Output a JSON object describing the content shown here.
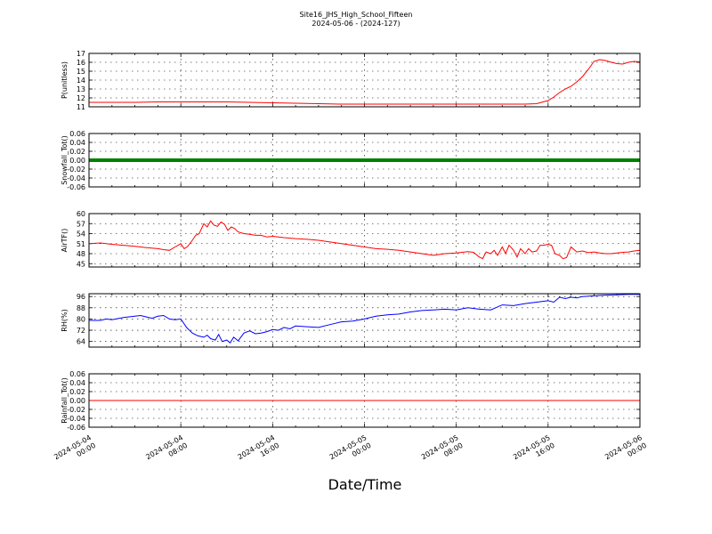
{
  "title": {
    "line1": "Site16_JHS_High_School_Fifteen",
    "line2": "2024-05-06 - (2024-127)"
  },
  "xlabel": "Date/Time",
  "x_ticks": [
    {
      "line1": "2024-05-04",
      "line2": "00:00"
    },
    {
      "line1": "2024-05-04",
      "line2": "08:00"
    },
    {
      "line1": "2024-05-04",
      "line2": "16:00"
    },
    {
      "line1": "2024-05-05",
      "line2": "00:00"
    },
    {
      "line1": "2024-05-05",
      "line2": "08:00"
    },
    {
      "line1": "2024-05-05",
      "line2": "16:00"
    },
    {
      "line1": "2024-05-06",
      "line2": "00:00"
    }
  ],
  "chart_data": [
    {
      "type": "line",
      "ylabel": "P(unitless)",
      "ylim": [
        11,
        17
      ],
      "yticks": [
        11,
        12,
        13,
        14,
        15,
        16,
        17
      ],
      "xlim_hours": [
        0,
        48
      ],
      "grid": true,
      "color": "#ff0000",
      "x": [
        0,
        2,
        4,
        6,
        8,
        10,
        12,
        14,
        16,
        18,
        20,
        22,
        24,
        26,
        28,
        30,
        32,
        34,
        36,
        38,
        39,
        40,
        40.5,
        41,
        41.5,
        42,
        42.5,
        43,
        43.5,
        44,
        44.5,
        45,
        45.5,
        46,
        46.5,
        47,
        47.5,
        48
      ],
      "values": [
        11.5,
        11.5,
        11.5,
        11.55,
        11.55,
        11.55,
        11.55,
        11.5,
        11.45,
        11.4,
        11.35,
        11.3,
        11.3,
        11.3,
        11.3,
        11.3,
        11.3,
        11.3,
        11.3,
        11.3,
        11.35,
        11.7,
        12.1,
        12.6,
        13.0,
        13.3,
        13.8,
        14.4,
        15.2,
        16.1,
        16.3,
        16.2,
        16.0,
        15.85,
        15.8,
        16.0,
        16.1,
        16.05
      ]
    },
    {
      "type": "line",
      "ylabel": "Snowfall_Tot()",
      "ylim": [
        -0.06,
        0.06
      ],
      "yticks": [
        "0.06",
        "0.04",
        "0.02",
        "0.00",
        "-0.02",
        "-0.04",
        "-0.06"
      ],
      "xlim_hours": [
        0,
        48
      ],
      "grid": true,
      "color": "#008000",
      "x": [
        0,
        48
      ],
      "values": [
        0.0,
        0.0
      ]
    },
    {
      "type": "line",
      "ylabel": "AirTF()",
      "ylim": [
        44,
        60
      ],
      "yticks": [
        45,
        48,
        51,
        54,
        57,
        60
      ],
      "xlim_hours": [
        0,
        48
      ],
      "grid": true,
      "color": "#ff0000",
      "x": [
        0,
        1,
        2,
        3,
        4,
        5,
        6,
        6.5,
        7,
        7.5,
        8,
        8.3,
        8.6,
        9,
        9.3,
        9.6,
        10,
        10.3,
        10.6,
        10.9,
        11.2,
        11.5,
        11.8,
        12.1,
        12.4,
        12.7,
        13,
        13.5,
        14,
        14.5,
        15,
        15.5,
        16,
        16.5,
        17,
        18,
        19,
        20,
        21,
        22,
        23,
        24,
        25,
        26,
        27,
        28,
        29,
        30,
        31,
        32,
        32.5,
        33,
        33.5,
        34,
        34.3,
        34.6,
        35,
        35.3,
        35.6,
        36,
        36.3,
        36.6,
        37,
        37.3,
        37.6,
        38,
        38.3,
        38.6,
        39,
        39.3,
        39.6,
        40,
        40.3,
        40.6,
        41,
        41.3,
        41.6,
        42,
        42.5,
        43,
        43.5,
        44,
        44.5,
        45,
        45.5,
        46,
        46.5,
        47,
        47.5,
        48
      ],
      "values": [
        51,
        51.2,
        50.8,
        50.5,
        50.2,
        49.8,
        49.5,
        49.2,
        49.0,
        50.0,
        51.0,
        49.5,
        50.2,
        52.0,
        53.5,
        54.0,
        57.0,
        56.0,
        57.8,
        56.5,
        56.2,
        57.5,
        56.8,
        55.0,
        56.0,
        55.5,
        54.5,
        54.0,
        53.8,
        53.5,
        53.5,
        53.0,
        53.2,
        53.0,
        52.8,
        52.5,
        52.3,
        52.0,
        51.5,
        51.0,
        50.5,
        50.0,
        49.5,
        49.3,
        49.0,
        48.5,
        48.0,
        47.5,
        48.0,
        48.2,
        48.4,
        48.6,
        48.4,
        47.0,
        46.5,
        48.5,
        48.0,
        49.0,
        47.5,
        50.0,
        48.0,
        50.5,
        49.0,
        47.0,
        49.5,
        48.0,
        49.5,
        48.5,
        48.8,
        50.5,
        50.5,
        50.8,
        50.5,
        48.0,
        47.5,
        46.5,
        46.8,
        50.0,
        48.5,
        48.8,
        48.3,
        48.5,
        48.2,
        48.0,
        48.0,
        48.2,
        48.4,
        48.5,
        48.8,
        49.0
      ]
    },
    {
      "type": "line",
      "ylabel": "RH(%)",
      "ylim": [
        60,
        98
      ],
      "yticks": [
        64,
        72,
        80,
        88,
        96
      ],
      "xlim_hours": [
        0,
        48
      ],
      "grid": true,
      "color": "#0000ff",
      "x": [
        0,
        1,
        1.5,
        2,
        3,
        4,
        4.5,
        5,
        5.5,
        6,
        6.5,
        7,
        7.5,
        8,
        8.5,
        9,
        9.5,
        10,
        10.3,
        10.6,
        11,
        11.3,
        11.6,
        12,
        12.3,
        12.6,
        13,
        13.5,
        14,
        14.5,
        15,
        15.5,
        16,
        16.5,
        17,
        17.5,
        18,
        19,
        20,
        21,
        22,
        23,
        24,
        25,
        26,
        27,
        28,
        29,
        30,
        31,
        32,
        33,
        34,
        35,
        36,
        37,
        38,
        39,
        40,
        40.5,
        41,
        41.5,
        42,
        42.5,
        43,
        44,
        45,
        46,
        47,
        48
      ],
      "values": [
        79,
        79,
        80,
        79.5,
        81,
        82,
        82.5,
        81.5,
        80.5,
        82,
        82.5,
        80,
        79.5,
        80,
        74,
        70,
        68,
        67,
        68.5,
        66,
        65,
        69,
        64,
        65,
        63,
        67,
        64.5,
        70,
        71.5,
        69.5,
        70,
        71,
        72.5,
        72,
        74,
        73,
        75,
        74.5,
        74,
        76,
        78,
        78.5,
        80,
        82,
        83,
        83.5,
        85,
        86,
        86.5,
        87,
        86.5,
        88,
        87,
        86.5,
        90,
        89.5,
        91,
        92,
        93,
        92,
        95.5,
        94.5,
        95.5,
        95,
        96,
        96.5,
        97,
        97.2,
        97.5,
        97.5
      ]
    },
    {
      "type": "line",
      "ylabel": "Rainfall_Tot()",
      "ylim": [
        -0.06,
        0.06
      ],
      "yticks": [
        "0.06",
        "0.04",
        "0.02",
        "0.00",
        "-0.02",
        "-0.04",
        "-0.06"
      ],
      "xlim_hours": [
        0,
        48
      ],
      "grid": true,
      "color": "#ff0000",
      "x": [
        0,
        48
      ],
      "values": [
        0.0,
        0.0
      ]
    }
  ]
}
